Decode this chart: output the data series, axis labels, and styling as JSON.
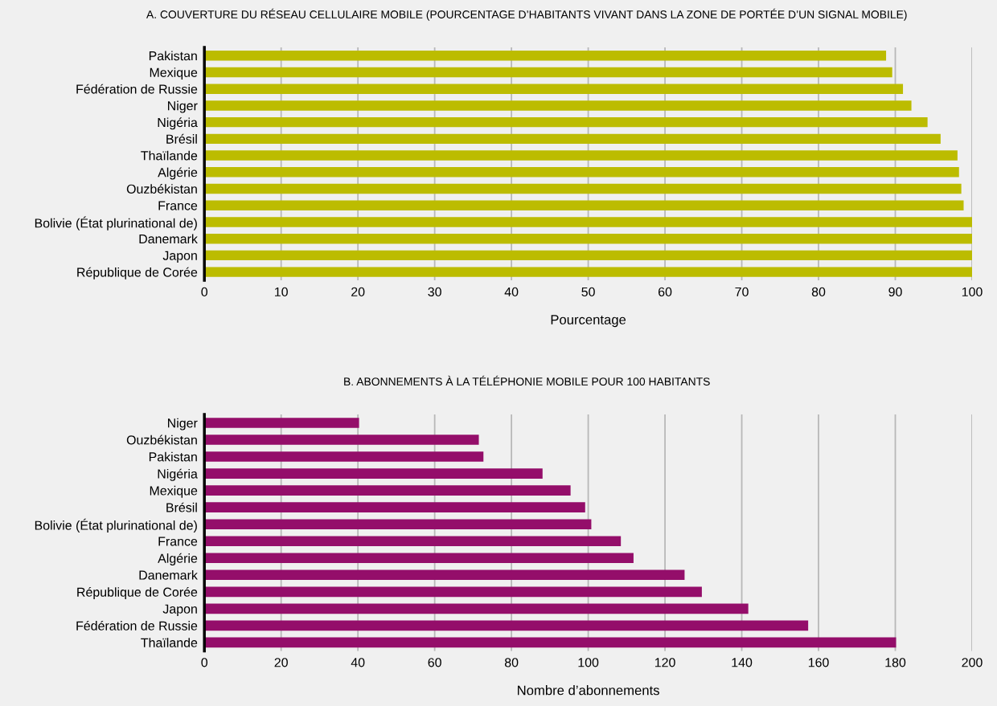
{
  "chart_data": [
    {
      "type": "bar",
      "orientation": "horizontal",
      "title": "A. COUVERTURE DU RÉSEAU CELLULAIRE MOBILE (POURCENTAGE D’HABITANTS VIVANT DANS LA ZONE DE PORTÉE D’UN SIGNAL MOBILE)",
      "xlabel": "Pourcentage",
      "categories": [
        "Pakistan",
        "Mexique",
        "Fédération de Russie",
        "Niger",
        "Nigéria",
        "Brésil",
        "Thaïlande",
        "Algérie",
        "Ouzbékistan",
        "France",
        "Bolivie (État plurinational de)",
        "Danemark",
        "Japon",
        "République de Corée"
      ],
      "values": [
        88.8,
        89.6,
        91.0,
        92.1,
        94.2,
        95.9,
        98.1,
        98.3,
        98.6,
        98.9,
        100,
        100,
        100,
        100
      ],
      "color": "#bcbc00",
      "xlim": [
        0,
        100
      ],
      "xticks": [
        0,
        10,
        20,
        30,
        40,
        50,
        60,
        70,
        80,
        90,
        100
      ],
      "grid": "x"
    },
    {
      "type": "bar",
      "orientation": "horizontal",
      "title": "B. ABONNEMENTS À LA TÉLÉPHONIE MOBILE POUR 100 HABITANTS",
      "xlabel": "Nombre d’abonnements",
      "categories": [
        "Niger",
        "Ouzbékistan",
        "Pakistan",
        "Nigéria",
        "Mexique",
        "Brésil",
        "Bolivie (État plurinational de)",
        "France",
        "Algérie",
        "Danemark",
        "République de Corée",
        "Japon",
        "Fédération de Russie",
        "Thaïlande"
      ],
      "values": [
        40.3,
        71.5,
        72.7,
        88.1,
        95.4,
        99.2,
        100.8,
        108.5,
        111.8,
        125.1,
        129.6,
        141.7,
        157.3,
        180.2
      ],
      "color": "#940e6a",
      "xlim": [
        0,
        200
      ],
      "xticks": [
        0,
        20,
        40,
        60,
        80,
        100,
        120,
        140,
        160,
        180,
        200
      ],
      "grid": "x"
    }
  ]
}
